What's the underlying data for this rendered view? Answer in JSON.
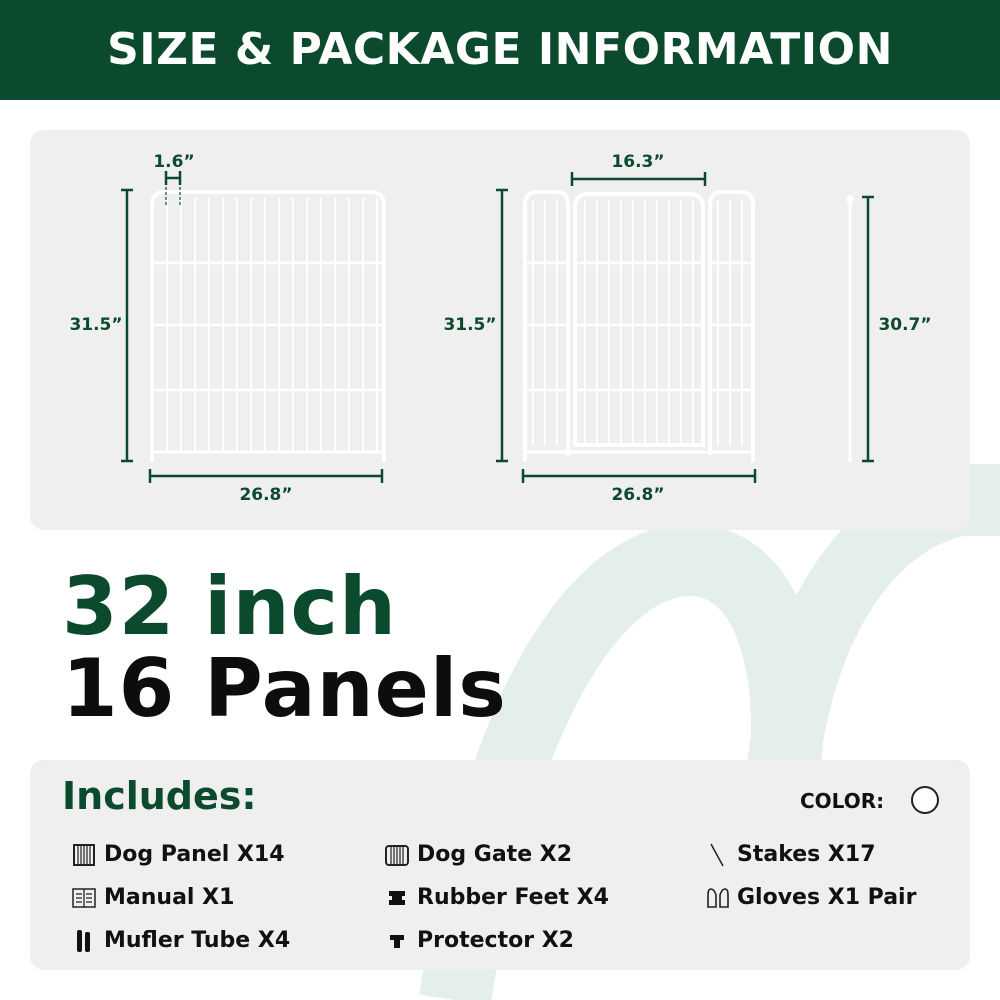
{
  "header": {
    "title": "SIZE & PACKAGE INFORMATION"
  },
  "colors": {
    "brand": "#0b4a2c",
    "panel_bg": "#efefef",
    "decor": "#e3efe8"
  },
  "dimensions": {
    "panel": {
      "bar_spacing": "1.6”",
      "height": "31.5”",
      "width": "26.8”"
    },
    "gate": {
      "door_width": "16.3”",
      "height": "31.5”",
      "width": "26.8”"
    },
    "stake": {
      "height": "30.7”"
    }
  },
  "headline": {
    "line1": "32 inch",
    "line2": "16 Panels"
  },
  "includes": {
    "title": "Includes:",
    "color_label": "COLOR:",
    "color_value": "#ffffff",
    "items": [
      {
        "icon": "panel-icon",
        "label": "Dog Panel X14"
      },
      {
        "icon": "gate-icon",
        "label": "Dog Gate X2"
      },
      {
        "icon": "stake-icon",
        "label": "Stakes X17"
      },
      {
        "icon": "manual-icon",
        "label": "Manual X1"
      },
      {
        "icon": "rubber-feet-icon",
        "label": "Rubber Feet X4"
      },
      {
        "icon": "gloves-icon",
        "label": "Gloves X1 Pair"
      },
      {
        "icon": "muffler-tube-icon",
        "label": "Mufler Tube X4"
      },
      {
        "icon": "protector-icon",
        "label": "Protector X2"
      }
    ]
  }
}
